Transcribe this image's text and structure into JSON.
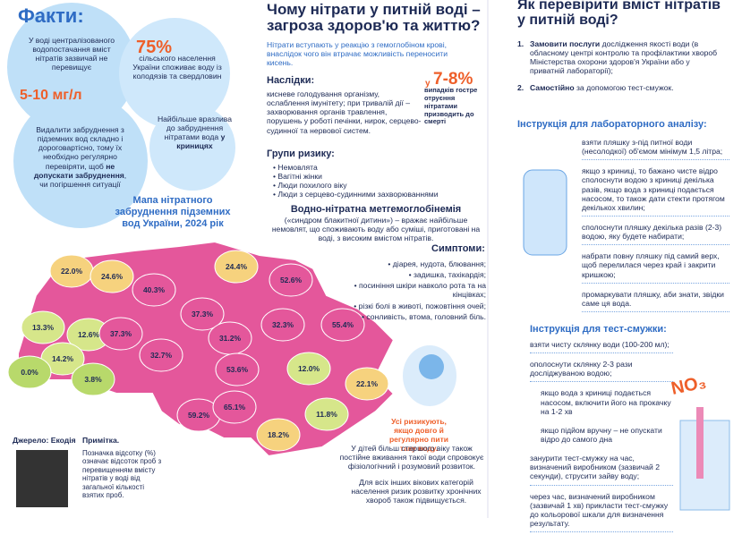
{
  "facts": {
    "title": "Факти:",
    "item1": {
      "text": "У воді централізованого водопостачання вміст нітратів зазвичай не перевищує",
      "value": "5-10 мг/л"
    },
    "item2": {
      "value": "75%",
      "text": "сільського населення України споживає воду із колодязів та свердловин"
    },
    "item3": {
      "text_a": "Видалити забруднення з підземних вод складно і дороговартісно, тому їх необхідно регулярно перевіряти, щоб",
      "bold": "не допускати забруднення",
      "text_b": ", чи погіршення ситуації"
    },
    "item4": {
      "text": "Найбільше вразлива до забруднення нітратами вода",
      "bold": "у криницях"
    }
  },
  "map": {
    "title": "Мапа нітратного забруднення підземних вод України, 2024 рік",
    "regions": [
      "22.0%",
      "24.6%",
      "40.3%",
      "24.4%",
      "52.6%",
      "13.3%",
      "12.6%",
      "37.3%",
      "37.3%",
      "32.3%",
      "55.4%",
      "14.2%",
      "32.7%",
      "31.2%",
      "0.0%",
      "3.8%",
      "53.6%",
      "12.0%",
      "22.1%",
      "59.2%",
      "65.1%",
      "11.8%",
      "18.2%"
    ]
  },
  "source": {
    "label": "Джерело: Екодія",
    "note_title": "Примітка.",
    "note": "Позначка відсотку (%) означає відсоток проб з перевищенням вмісту нітратів у воді від загальної кількості взятих проб."
  },
  "why": {
    "title": "Чому нітрати у питній воді – загроза здоров'ю та життю?",
    "intro": "Нітрати вступають у реакцію з гемоглобіном крові, внаслідок чого він втрачає можливість переносити кисень.",
    "consequences_title": "Наслідки:",
    "consequences": "кисневе голодування організму, ослаблення імунітету; при тривалій дії – захворювання органів травлення, порушень у роботі печінки, нирок, серцево-судинної та нервової систем.",
    "stat_prefix": "у",
    "stat": "7-8%",
    "stat_text": "випадків гостре отруєння нітратами призводить до смерті",
    "risk_title": "Групи ризику:",
    "risk_groups": [
      "Немовлята",
      "Вагітні жінки",
      "Люди похилого віку",
      "Люди з серцево-судинними захворюваннями"
    ],
    "syndrome_title": "Водно-нітратна метгемоглобінемія",
    "syndrome": "(«синдром блакитної дитини») – вражає найбільше немовлят, що споживають воду або суміші, приготовані на воді, з високим вмістом нітратів.",
    "symptoms_title": "Симптоми:",
    "symptoms": [
      "• діарея, нудота, блювання;",
      "• задишка, тахікардія;",
      "• посиніння шкіри навколо рота та на кінцівках;",
      "• різкі болі в животі, пожовтіння очей;",
      "• сонливість, втома, головний біль."
    ],
    "warning": "Усі ризикують, якщо довго й регулярно пити таку воду.",
    "children": "У дітей більш старшого віку також постійне вживання такої води спровокує фізіологічний і розумовий розвиток.",
    "others": "Для всіх інших вікових категорій населення ризик розвитку хронічних хвороб також підвищується."
  },
  "how": {
    "title": "Як перевірити вміст нітратів у питній воді?",
    "steps": [
      {
        "num": "1.",
        "bold": "Замовити послуги",
        "text": "дослідження якості води (в обласному центрі контролю та профілактики хвороб Міністерства охорони здоров'я України або у приватній лабораторії);"
      },
      {
        "num": "2.",
        "bold": "Самостійно",
        "text": "за допомогою тест-смужок."
      }
    ],
    "lab_title": "Інструкція для лабораторного аналізу:",
    "lab_steps": [
      "взяти пляшку з-під питної води (несолодкої) об'ємом мінімум 1,5 літра;",
      "якщо з криниці, то бажано чисте відро сполоснути водою з криниці декілька разів, якщо вода з криниці подається насосом, то також дати стекти протягом декількох хвилин;",
      "сполоснути пляшку декілька разів (2-3) водою, яку будете набирати;",
      "набрати повну пляшку під самий верх, щоб перелилася через край і закрити кришкою;",
      "промаркувати пляшку, аби знати, звідки саме ця вода."
    ],
    "strip_title": "Інструкція для тест-смужки:",
    "strip_steps": [
      "взяти чисту склянку води (100-200 мл);",
      "ополоснути склянку 2-3 рази досліджуваною водою;"
    ],
    "strip_sub": [
      "якщо вода з криниці подається насосом, включити його на прокачку на 1-2 хв",
      "якщо підйом вручну – не опускати відро до самого дна"
    ],
    "strip_steps2": [
      "занурити тест-смужку на час, визначений виробником (зазвичай 2 секунди), струсити зайву воду;",
      "через час, визначений виробником (зазвичай 1 хв) прикласти тест-смужку до кольорової шкали для визначення результату."
    ],
    "badge": "NO₃"
  }
}
